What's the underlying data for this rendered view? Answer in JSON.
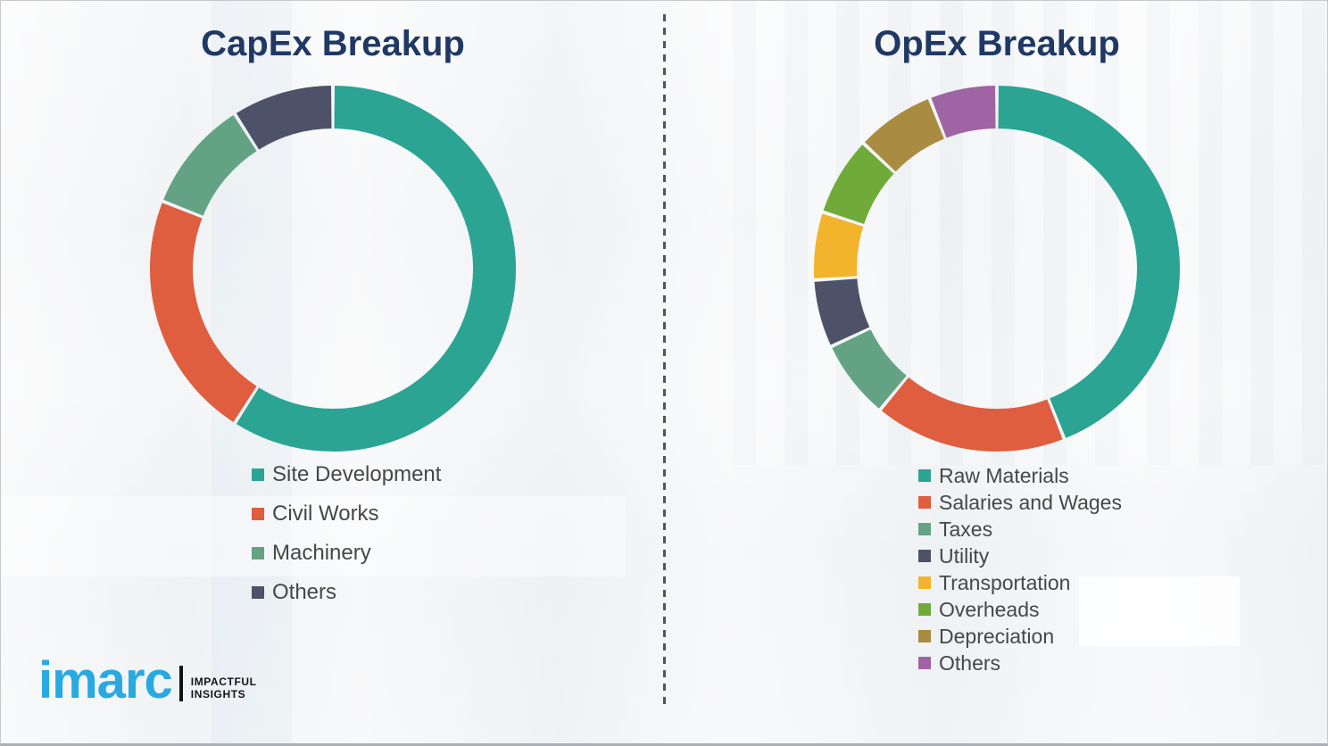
{
  "page": {
    "title_color": "#1f3864",
    "background_color": "#f2f3f5",
    "divider_color": "#50545c",
    "legend_text_color": "#474747"
  },
  "logo": {
    "brand": "imarc",
    "brand_color": "#29a9e1",
    "tagline_line1": "IMPACTFUL",
    "tagline_line2": "INSIGHTS"
  },
  "chart_data": [
    {
      "type": "pie",
      "subtype": "donut",
      "title": "CapEx Breakup",
      "categories": [
        "Site Development",
        "Civil Works",
        "Machinery",
        "Others"
      ],
      "values": [
        59,
        22,
        10,
        9
      ],
      "unit": "percent-share-estimated-from-arc-angles",
      "colors": [
        "#2ba494",
        "#de5e3f",
        "#63a384",
        "#4d5269"
      ],
      "start_angle_deg": 0,
      "direction": "clockwise",
      "data_labels_shown": false,
      "legend_position": "below-chart-left"
    },
    {
      "type": "pie",
      "subtype": "donut",
      "title": "OpEx Breakup",
      "categories": [
        "Raw Materials",
        "Salaries and Wages",
        "Taxes",
        "Utility",
        "Transportation",
        "Overheads",
        "Depreciation",
        "Others"
      ],
      "values": [
        44,
        17,
        7,
        6,
        6,
        7,
        7,
        6
      ],
      "unit": "percent-share-estimated-from-arc-angles",
      "colors": [
        "#2ba494",
        "#de5e3f",
        "#63a384",
        "#4d5269",
        "#f2b42c",
        "#70ab3a",
        "#a98c42",
        "#9f64a4"
      ],
      "start_angle_deg": 0,
      "direction": "clockwise",
      "data_labels_shown": false,
      "legend_position": "below-chart-left"
    }
  ]
}
